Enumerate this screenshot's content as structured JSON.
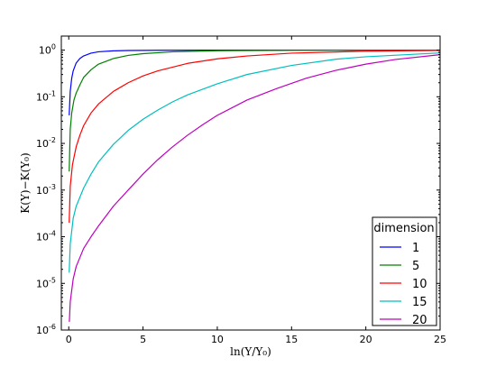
{
  "chart_data": {
    "type": "line",
    "title": "",
    "xlabel": "ln(Y/Y₀)",
    "ylabel": "K(Y)−K(Y₀)",
    "xlim": [
      -0.5,
      25
    ],
    "ylim": [
      1e-06,
      2
    ],
    "yscale": "log",
    "grid": false,
    "x_ticks": [
      "0",
      "5",
      "10",
      "15",
      "20",
      "25"
    ],
    "x_tick_values": [
      0,
      5,
      10,
      15,
      20,
      25
    ],
    "y_ticks": [
      {
        "base": "10",
        "exp": "-6",
        "value": 1e-06
      },
      {
        "base": "10",
        "exp": "-5",
        "value": 1e-05
      },
      {
        "base": "10",
        "exp": "-4",
        "value": 0.0001
      },
      {
        "base": "10",
        "exp": "-3",
        "value": 0.001
      },
      {
        "base": "10",
        "exp": "-2",
        "value": 0.01
      },
      {
        "base": "10",
        "exp": "-1",
        "value": 0.1
      },
      {
        "base": "10",
        "exp": "0",
        "value": 1
      }
    ],
    "legend": {
      "title": "dimension",
      "position": "lower-right"
    },
    "series": [
      {
        "name": "1",
        "color": "#0000ff",
        "x": [
          0.03,
          0.1,
          0.2,
          0.3,
          0.5,
          0.75,
          1.0,
          1.5,
          2.0,
          3.0,
          4.0,
          6.0,
          10.0,
          15.0,
          20.0,
          25.0
        ],
        "y": [
          0.04,
          0.13,
          0.25,
          0.36,
          0.53,
          0.66,
          0.75,
          0.86,
          0.92,
          0.965,
          0.98,
          0.992,
          0.998,
          1.0,
          1.0,
          1.0
        ]
      },
      {
        "name": "5",
        "color": "#008000",
        "x": [
          0.03,
          0.1,
          0.2,
          0.35,
          0.5,
          0.75,
          1.0,
          1.5,
          2.0,
          3.0,
          4.0,
          5.0,
          7.0,
          10.0,
          15.0,
          20.0,
          25.0
        ],
        "y": [
          0.0025,
          0.02,
          0.045,
          0.085,
          0.12,
          0.18,
          0.26,
          0.38,
          0.5,
          0.66,
          0.77,
          0.84,
          0.92,
          0.97,
          0.99,
          0.997,
          1.0
        ]
      },
      {
        "name": "10",
        "color": "#ff0000",
        "x": [
          0.03,
          0.1,
          0.25,
          0.5,
          0.75,
          1.0,
          1.5,
          2.0,
          3.0,
          4.0,
          5.0,
          6.0,
          8.0,
          10.0,
          12.0,
          15.0,
          20.0,
          25.0
        ],
        "y": [
          0.0002,
          0.0012,
          0.0035,
          0.0085,
          0.015,
          0.024,
          0.045,
          0.07,
          0.13,
          0.2,
          0.28,
          0.36,
          0.52,
          0.65,
          0.75,
          0.86,
          0.95,
          0.985
        ]
      },
      {
        "name": "15",
        "color": "#00bfbf",
        "x": [
          0.03,
          0.1,
          0.3,
          0.5,
          1.0,
          1.5,
          2.0,
          3.0,
          4.0,
          5.0,
          6.0,
          7.0,
          8.0,
          10.0,
          12.0,
          15.0,
          18.0,
          20.0,
          25.0
        ],
        "y": [
          1.7e-05,
          7e-05,
          0.00025,
          0.00045,
          0.0011,
          0.0022,
          0.004,
          0.0095,
          0.019,
          0.033,
          0.052,
          0.078,
          0.11,
          0.19,
          0.3,
          0.47,
          0.64,
          0.72,
          0.87
        ]
      },
      {
        "name": "20",
        "color": "#bf00bf",
        "x": [
          0.04,
          0.1,
          0.3,
          0.5,
          1.0,
          1.5,
          2.0,
          3.0,
          4.0,
          5.0,
          6.0,
          7.0,
          8.0,
          9.0,
          10.0,
          12.0,
          14.0,
          16.0,
          18.0,
          20.0,
          22.0,
          25.0
        ],
        "y": [
          1.5e-06,
          4e-06,
          1.25e-05,
          2.3e-05,
          5.6e-05,
          0.0001,
          0.00017,
          0.00045,
          0.001,
          0.0022,
          0.0045,
          0.0085,
          0.015,
          0.025,
          0.04,
          0.085,
          0.15,
          0.25,
          0.37,
          0.5,
          0.63,
          0.8
        ]
      }
    ]
  }
}
